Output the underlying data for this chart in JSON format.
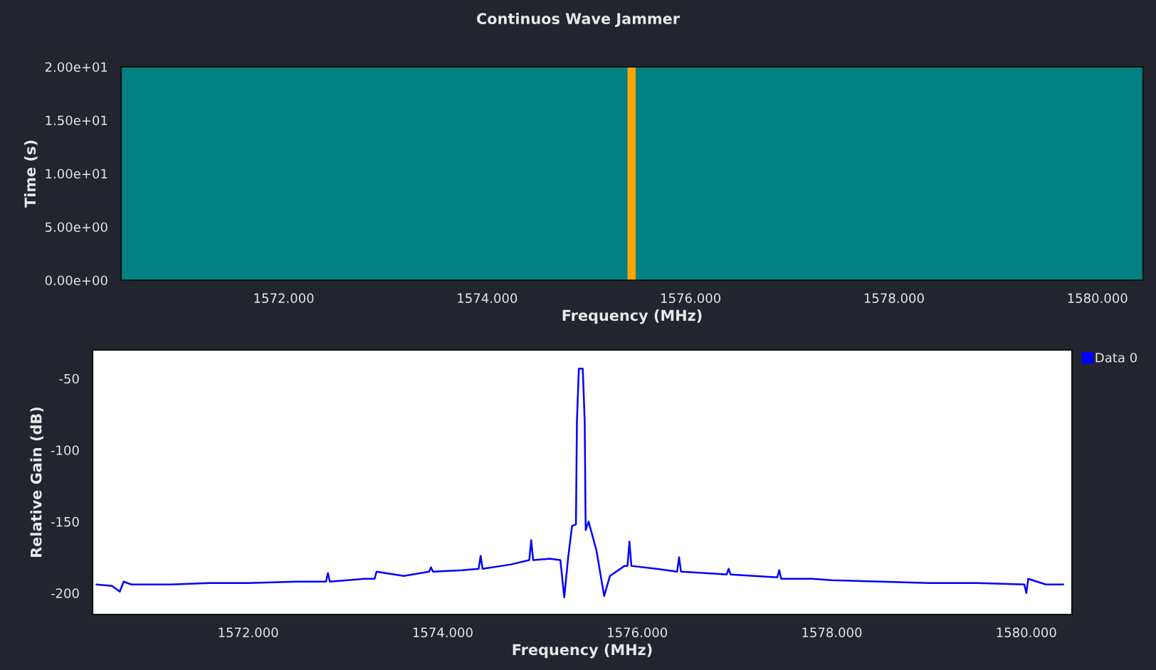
{
  "chart_data": [
    {
      "type": "line",
      "title": "Continuos Wave Jammer",
      "xlabel": "Frequency (MHz)",
      "ylabel": "Time (s)",
      "xlim": [
        1570.4,
        1580.45
      ],
      "xticks": [
        {
          "value": 1572,
          "label": "1572.000"
        },
        {
          "value": 1574,
          "label": "1574.000"
        },
        {
          "value": 1576,
          "label": "1576.000"
        },
        {
          "value": 1578,
          "label": "1578.000"
        },
        {
          "value": 1580,
          "label": "1580.000"
        }
      ],
      "ylim": [
        0,
        20
      ],
      "yticks": [
        {
          "value": 0,
          "label": "0.00e+00"
        },
        {
          "value": 5,
          "label": "5.00e+00"
        },
        {
          "value": 10,
          "label": "1.00e+01"
        },
        {
          "value": 15,
          "label": "1.50e+01"
        },
        {
          "value": 20,
          "label": "2.00e+01"
        }
      ],
      "bands": [
        {
          "axis": "x",
          "from": 1575.38,
          "to": 1575.46,
          "color": "#ffa500"
        }
      ]
    },
    {
      "type": "line",
      "xlabel": "Frequency (MHz)",
      "ylabel": "Relative Gain (dB)",
      "xlim": [
        1570.4,
        1580.47
      ],
      "xticks": [
        {
          "value": 1572,
          "label": "1572.000"
        },
        {
          "value": 1574,
          "label": "1574.000"
        },
        {
          "value": 1576,
          "label": "1576.000"
        },
        {
          "value": 1578,
          "label": "1578.000"
        },
        {
          "value": 1580,
          "label": "1580.000"
        }
      ],
      "ylim": [
        -215,
        -30
      ],
      "yticks": [
        -50,
        -100,
        -150,
        -200
      ],
      "legend": "top right",
      "series": [
        {
          "name": "Data 0",
          "color": "#0000ff",
          "x": [
            1570.44,
            1570.6,
            1570.68,
            1570.72,
            1570.8,
            1571.2,
            1571.6,
            1572.0,
            1572.5,
            1572.8,
            1572.82,
            1572.84,
            1573.2,
            1573.3,
            1573.32,
            1573.6,
            1573.86,
            1573.88,
            1573.9,
            1574.2,
            1574.37,
            1574.39,
            1574.41,
            1574.7,
            1574.89,
            1574.91,
            1574.93,
            1575.1,
            1575.21,
            1575.25,
            1575.29,
            1575.33,
            1575.37,
            1575.38,
            1575.4,
            1575.42,
            1575.44,
            1575.46,
            1575.47,
            1575.5,
            1575.58,
            1575.66,
            1575.72,
            1575.87,
            1575.9,
            1575.92,
            1575.94,
            1576.2,
            1576.41,
            1576.43,
            1576.45,
            1576.7,
            1576.92,
            1576.94,
            1576.96,
            1577.2,
            1577.44,
            1577.46,
            1577.48,
            1577.8,
            1578.0,
            1578.5,
            1579.0,
            1579.5,
            1579.98,
            1580.0,
            1580.02,
            1580.2,
            1580.38
          ],
          "values": [
            -194,
            -195,
            -199,
            -192,
            -194,
            -194,
            -193,
            -193,
            -192,
            -192,
            -186,
            -192,
            -190,
            -190,
            -185,
            -188,
            -185,
            -182,
            -185,
            -184,
            -183,
            -174,
            -183,
            -180,
            -177,
            -163,
            -177,
            -176,
            -177,
            -203,
            -175,
            -153,
            -152,
            -80,
            -43,
            -43,
            -43,
            -80,
            -156,
            -150,
            -170,
            -202,
            -188,
            -181,
            -181,
            -164,
            -181,
            -183,
            -185,
            -175,
            -185,
            -186,
            -187,
            -183,
            -187,
            -188,
            -189,
            -184,
            -190,
            -190,
            -191,
            -192,
            -193,
            -193,
            -194,
            -200,
            -190,
            -194,
            -194
          ]
        }
      ]
    }
  ]
}
